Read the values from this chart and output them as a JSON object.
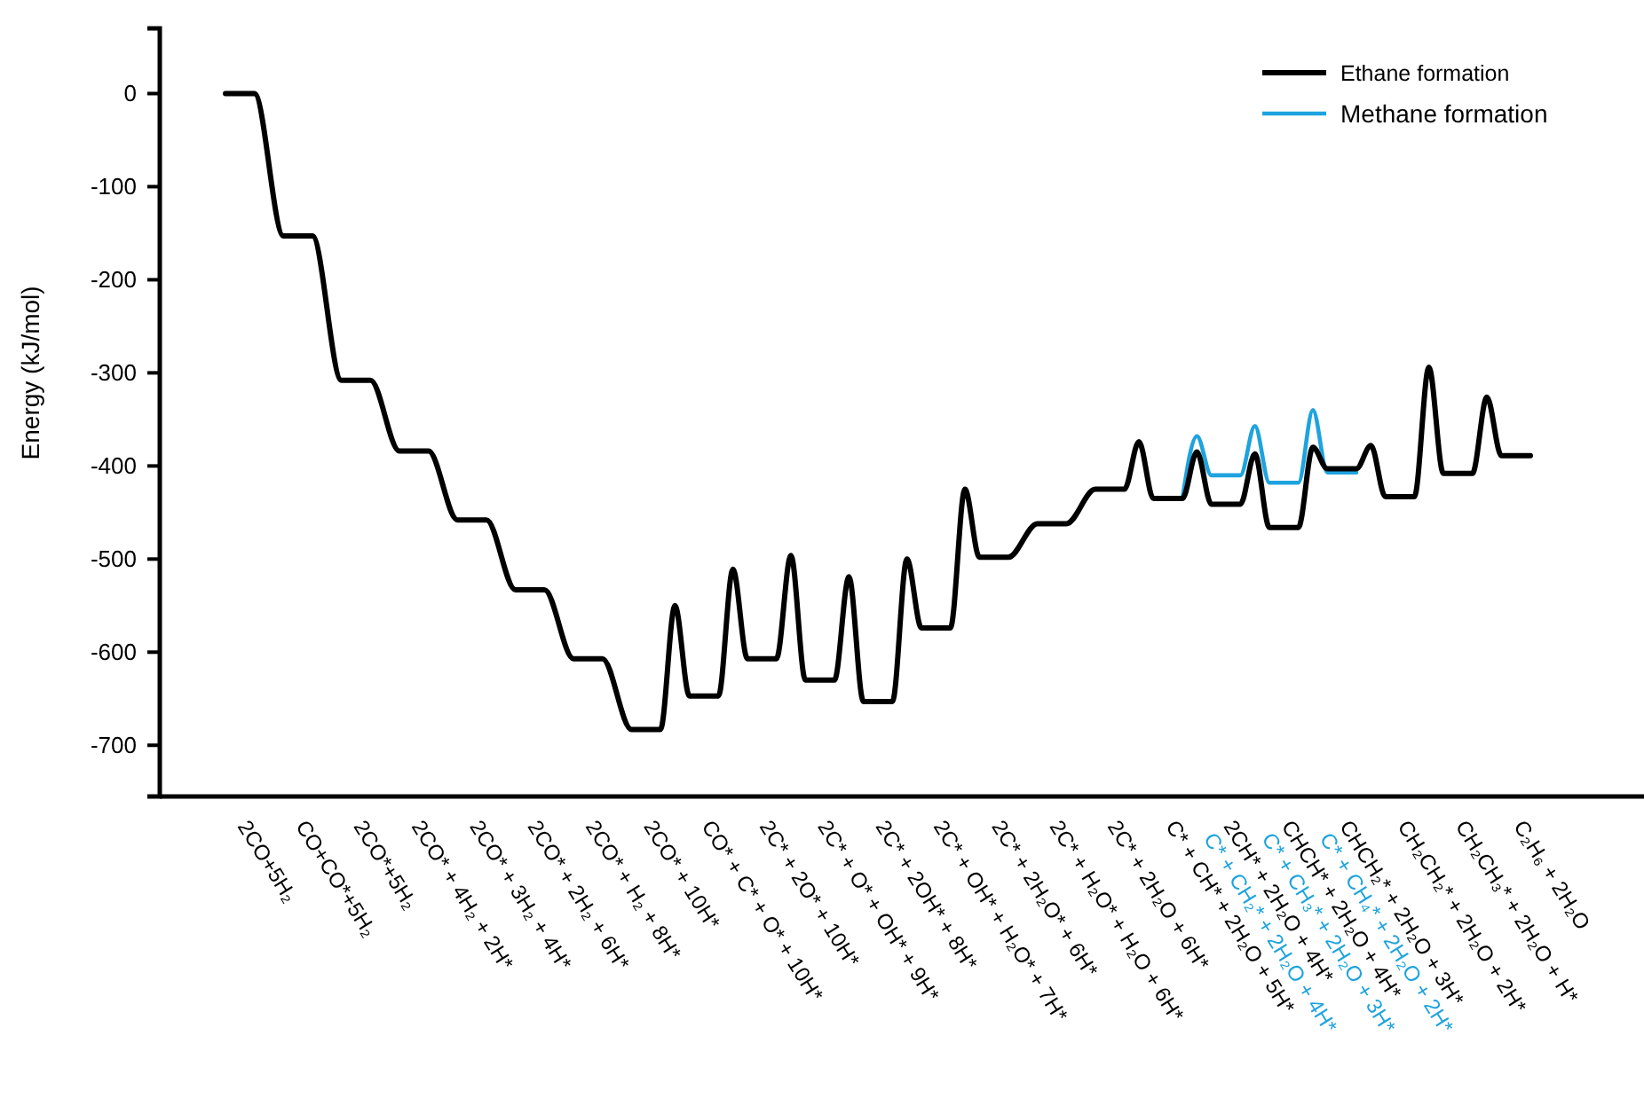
{
  "chart_data": {
    "type": "line",
    "ylabel": "Energy (kJ/mol)",
    "ylim": [
      -755,
      70
    ],
    "yticks": [
      0,
      -100,
      -200,
      -300,
      -400,
      -500,
      -600,
      -700
    ],
    "categories": [
      null,
      "2CO+5H₂",
      null,
      null,
      null,
      "CO+CO*+5H₂",
      null,
      null,
      null,
      "2CO*+5H₂",
      null,
      null,
      null,
      "2CO* + 4H₂ + 2H*",
      null,
      null,
      null,
      "2CO* + 3H₂ + 4H*",
      null,
      null,
      null,
      "2CO* + 2H₂ + 6H*",
      null,
      null,
      null,
      "2CO* + H₂ + 8H*",
      null,
      null,
      null,
      "2CO* + 10H*",
      null,
      null,
      null,
      "CO* + C* + O* + 10H*",
      null,
      null,
      null,
      "2C* + 2O* + 10H*",
      null,
      null,
      null,
      "2C* + O* + OH* + 9H*",
      null,
      null,
      null,
      "2C* + 2OH* + 8H*",
      null,
      null,
      null,
      "2C* + OH* + H₂O* + 7H*",
      null,
      null,
      null,
      "2C* + 2H₂O* + 6H*",
      null,
      null,
      null,
      "2C* + H₂O* + H₂O + 6H*",
      null,
      null,
      null,
      "2C* + 2H₂O + 6H*",
      null,
      null,
      null,
      "C* + CH* + 2H₂O + 5H*",
      null,
      null,
      null,
      "2CH* + 2H₂O + 4H*",
      null,
      null,
      null,
      "CHCH* + 2H₂O + 4H*",
      null,
      null,
      null,
      "CHCH₂* + 2H₂O + 3H*",
      null,
      null,
      null,
      "CH₂CH₂* + 2H₂O + 2H*",
      null,
      null,
      null,
      "CH₂CH₃* + 2H₂O + H*",
      null,
      null,
      null,
      "C₂H₆ + 2H₂O",
      null
    ],
    "legend": "top right",
    "series": [
      {
        "name": "Ethane formation",
        "color": "#000000",
        "values": [
          0,
          0,
          0,
          null,
          -153,
          -153,
          -153,
          null,
          -308,
          -308,
          -308,
          null,
          -384,
          -384,
          -384,
          null,
          -458,
          -458,
          -458,
          null,
          -533,
          -533,
          -533,
          null,
          -607,
          -607,
          -607,
          null,
          -683,
          -683,
          -683,
          -550,
          -647,
          -647,
          -647,
          -511,
          -607,
          -607,
          -607,
          -496,
          -630,
          -630,
          -630,
          -519,
          -653,
          -653,
          -653,
          -500,
          -574,
          -574,
          -574,
          -425,
          -498,
          -498,
          -498,
          null,
          -462,
          -462,
          -462,
          null,
          -425,
          -425,
          -425,
          -374,
          -435,
          -435,
          -435,
          -385,
          -441,
          -441,
          -441,
          -387,
          -466,
          -466,
          -466,
          -380,
          -403,
          -403,
          -403,
          -378,
          -433,
          -433,
          -433,
          -294,
          -408,
          -408,
          -408,
          -326,
          -389,
          -389,
          -389
        ]
      },
      {
        "name": "Methane formation",
        "color": "#1ea3de",
        "values": [
          null,
          null,
          null,
          null,
          null,
          null,
          null,
          null,
          null,
          null,
          null,
          null,
          null,
          null,
          null,
          null,
          null,
          null,
          null,
          null,
          null,
          null,
          null,
          null,
          null,
          null,
          null,
          null,
          null,
          null,
          null,
          null,
          null,
          null,
          null,
          null,
          null,
          null,
          null,
          null,
          null,
          null,
          null,
          null,
          null,
          null,
          null,
          null,
          null,
          null,
          null,
          null,
          null,
          null,
          null,
          null,
          null,
          null,
          null,
          null,
          null,
          null,
          null,
          null,
          null,
          null,
          -435,
          -368,
          -410,
          -410,
          -410,
          -357,
          -418,
          -418,
          -418,
          -340,
          -407,
          -407,
          -407,
          null,
          null,
          null,
          null,
          null,
          null,
          null,
          null,
          null,
          null,
          null,
          null
        ]
      }
    ],
    "annotations": [
      "C* + CH₂* + 2H₂O + 4H*",
      "C* + CH₃* + 2H₂O + 3H*",
      "C* + CH₄* + 2H₂O + 2H*"
    ]
  }
}
